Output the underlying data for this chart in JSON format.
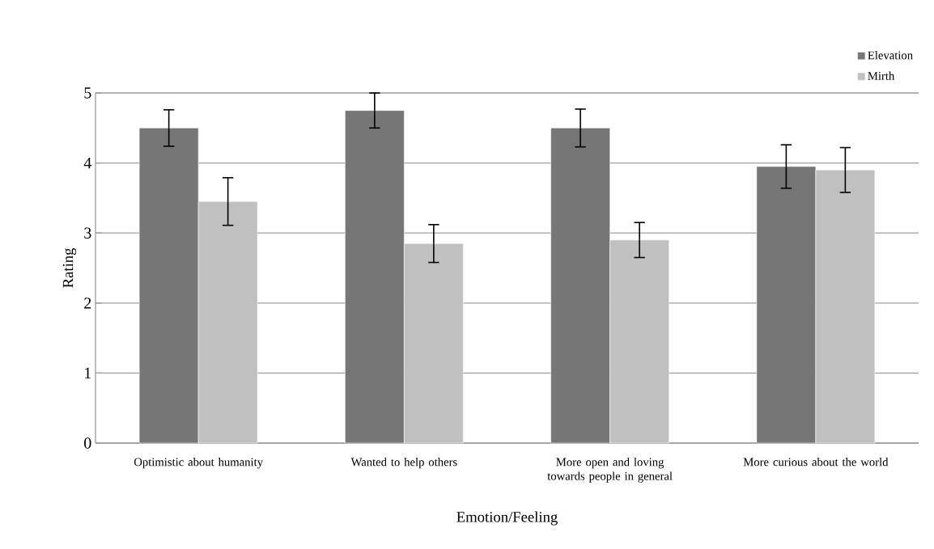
{
  "chart_data": {
    "type": "bar",
    "xlabel": "Emotion/Feeling",
    "ylabel": "Rating",
    "categories": [
      "Optimistic about humanity",
      "Wanted to help others",
      "More open and loving towards people in general",
      "More curious about the world"
    ],
    "series": [
      {
        "name": "Elevation",
        "color": "#767676",
        "values": [
          4.5,
          4.75,
          4.5,
          3.95
        ],
        "errors": [
          0.26,
          0.25,
          0.27,
          0.31
        ]
      },
      {
        "name": "Mirth",
        "color": "#c0c0c0",
        "values": [
          3.45,
          2.85,
          2.9,
          3.9
        ],
        "errors": [
          0.34,
          0.27,
          0.25,
          0.32
        ]
      }
    ],
    "ylim": [
      0,
      5
    ],
    "yticks": [
      0,
      1,
      2,
      3,
      4,
      5
    ],
    "grid": "y",
    "legend": "top right"
  }
}
